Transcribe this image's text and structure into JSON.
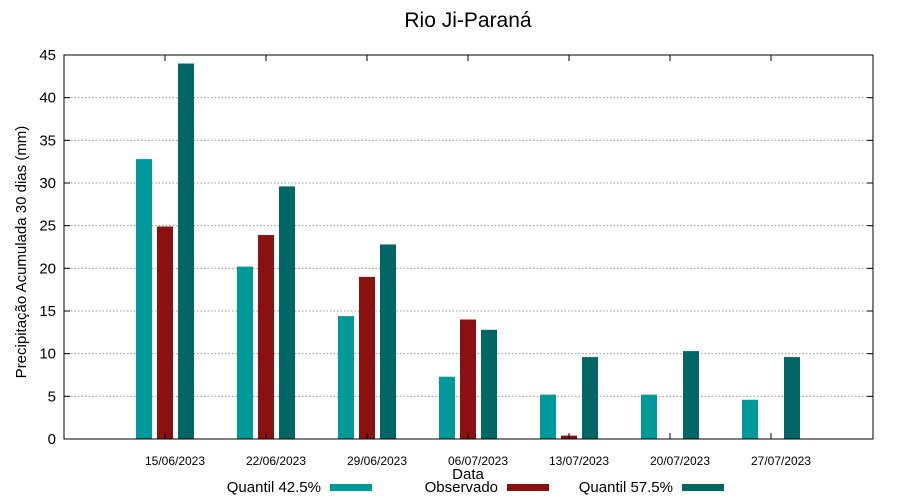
{
  "chart_data": {
    "type": "bar",
    "title": "Rio Ji-Paraná",
    "xlabel": "Data",
    "ylabel": "Precipitação Acumulada 30 dias (mm)",
    "ylim": [
      0,
      45
    ],
    "yticks": [
      0,
      5,
      10,
      15,
      20,
      25,
      30,
      35,
      40,
      45
    ],
    "grid": true,
    "legend_position": "bottom",
    "categories": [
      "15/06/2023",
      "22/06/2023",
      "29/06/2023",
      "06/07/2023",
      "13/07/2023",
      "20/07/2023",
      "27/07/2023"
    ],
    "series": [
      {
        "name": "Quantil 42.5%",
        "color": "#009999",
        "values": [
          32.8,
          20.2,
          14.4,
          7.3,
          5.2,
          5.2,
          4.6
        ]
      },
      {
        "name": "Observado",
        "color": "#8b1010",
        "values": [
          24.9,
          23.9,
          19.0,
          14.0,
          0.4,
          null,
          null
        ]
      },
      {
        "name": "Quantil 57.5%",
        "color": "#006666",
        "values": [
          44.0,
          29.6,
          22.8,
          12.8,
          9.6,
          10.3,
          9.6
        ]
      }
    ]
  }
}
